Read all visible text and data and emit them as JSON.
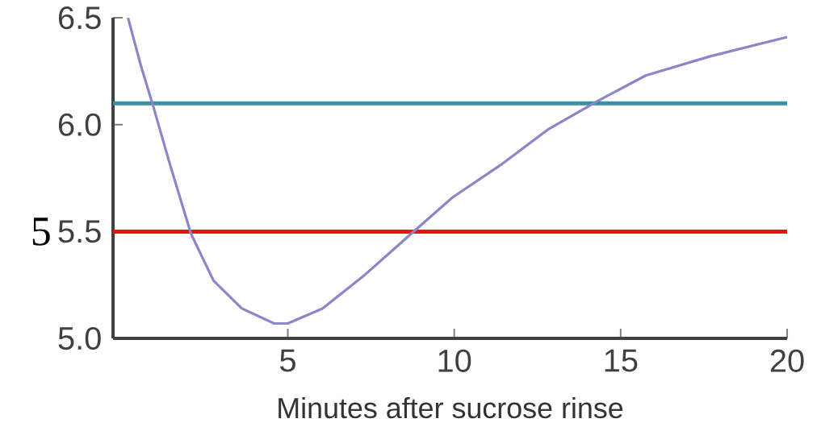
{
  "chart_data": {
    "type": "line",
    "xlabel": "Minutes after sucrose rinse",
    "x": [
      0.2,
      0.58,
      0.95,
      1.43,
      2.09,
      2.77,
      3.62,
      4.59,
      5.0,
      6.04,
      7.26,
      8.71,
      9.95,
      11.38,
      12.84,
      14.3,
      15.75,
      17.69,
      20
    ],
    "values": [
      6.5,
      6.28,
      6.09,
      5.83,
      5.49,
      5.27,
      5.14,
      5.07,
      5.07,
      5.14,
      5.29,
      5.49,
      5.66,
      5.81,
      5.98,
      6.11,
      6.23,
      6.32,
      6.41
    ],
    "color": "#8a86c8",
    "xlim": [
      -0.25,
      20
    ],
    "ylim": [
      5.0,
      6.5
    ],
    "xticks": [
      5,
      10,
      15,
      20
    ],
    "yticks": [
      {
        "value": 5.0,
        "label": "5.0"
      },
      {
        "value": 5.5,
        "label": "5.5"
      },
      {
        "value": 6.0,
        "label": "6.0"
      },
      {
        "value": 6.5,
        "label": "6.5"
      }
    ],
    "ref_lines": [
      {
        "axis": "y",
        "value": 6.1,
        "color": "#3a8fa0"
      },
      {
        "axis": "y",
        "value": 5.5,
        "color": "#ee1111"
      }
    ],
    "annotations": [
      "5"
    ],
    "grid": false,
    "marker": "none",
    "line_style": "solid"
  }
}
